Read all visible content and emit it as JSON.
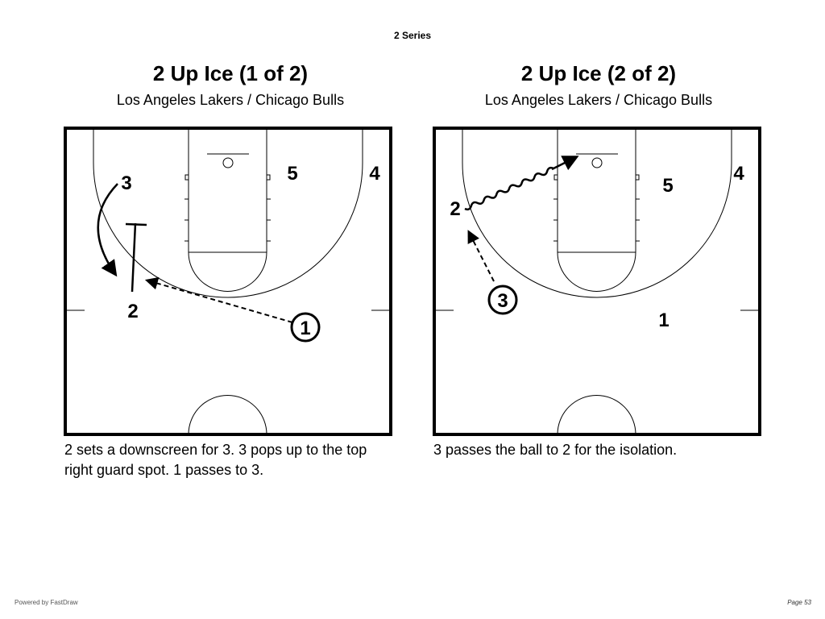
{
  "header": {
    "series": "2 Series"
  },
  "plays": [
    {
      "title": "2 Up Ice (1 of 2)",
      "subtitle": "Los Angeles Lakers / Chicago Bulls",
      "players": [
        "1",
        "2",
        "3",
        "4",
        "5"
      ],
      "description": "2 sets a downscreen for 3. 3 pops up to the top right guard spot. 1 passes to 3."
    },
    {
      "title": "2 Up Ice (2 of 2)",
      "subtitle": "Los Angeles Lakers / Chicago Bulls",
      "players": [
        "1",
        "2",
        "3",
        "4",
        "5"
      ],
      "description": "3 passes the ball to 2 for the isolation."
    }
  ],
  "footer": {
    "powered_by": "Powered by FastDraw",
    "page": "Page 53"
  }
}
